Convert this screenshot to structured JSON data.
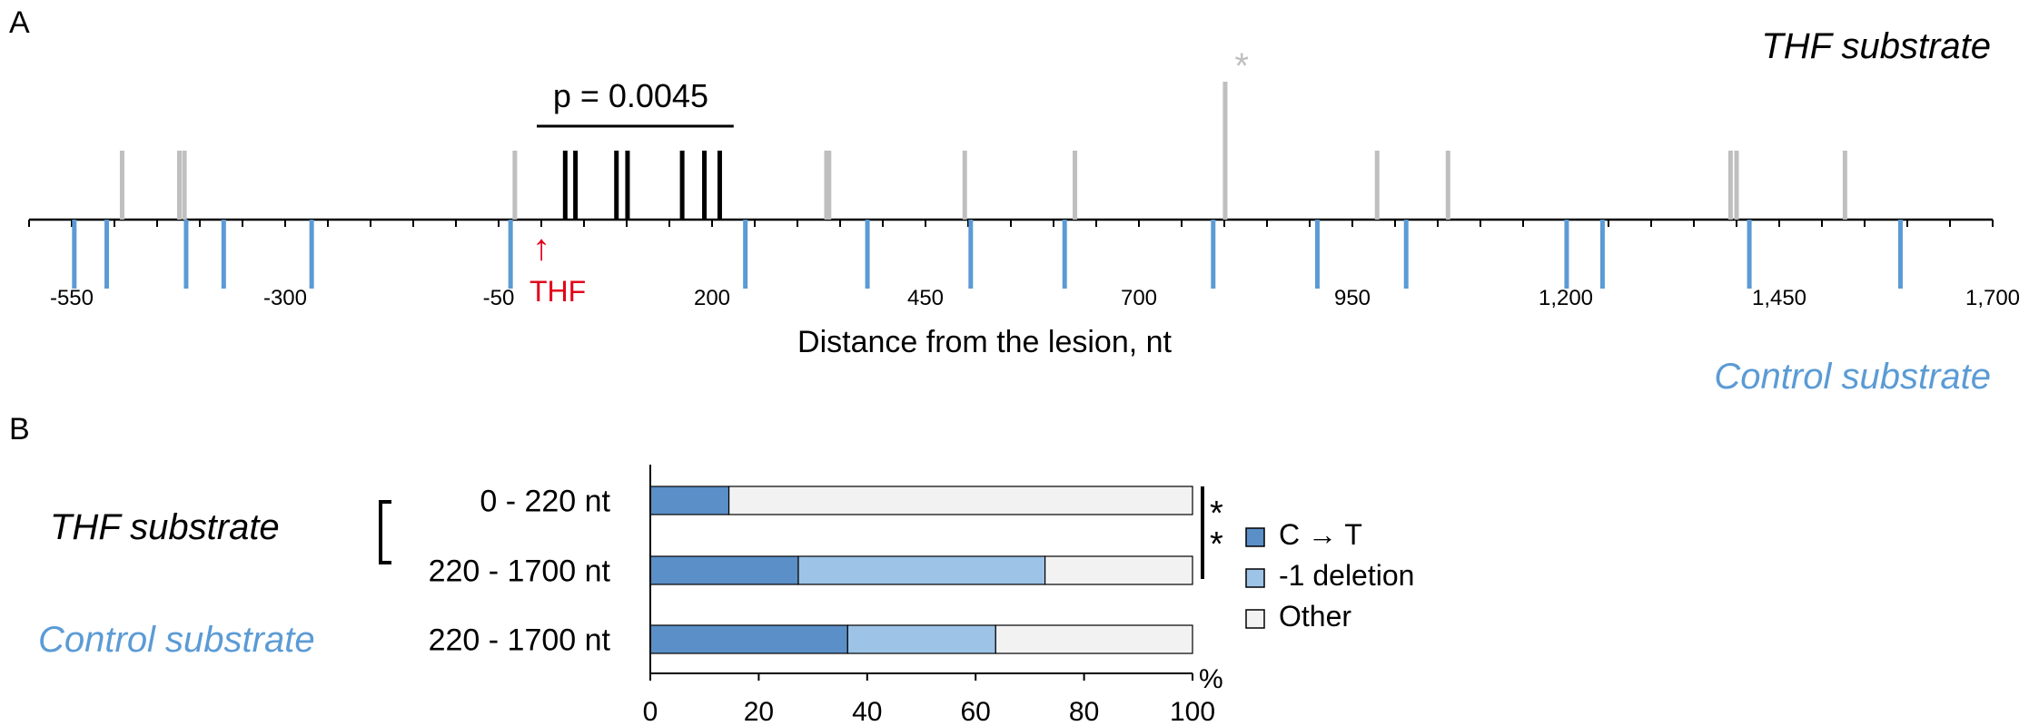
{
  "colors": {
    "thf_site": "#000000",
    "thf_site_other": "#bfbfbf",
    "control_site": "#5b9bd5",
    "lesion_marker": "#e2001a",
    "c_to_t": "#5b8fc7",
    "deletion": "#9dc3e6",
    "other": "#f2f2f2",
    "control_label": "#5b9bd5"
  },
  "chart_data": [
    {
      "type": "scatter",
      "panel_label": "A",
      "title": "THF substrate",
      "subtitle": "Control substrate",
      "xlabel": "Distance from the lesion, nt",
      "ylabel": "",
      "xlim": [
        -600,
        1700
      ],
      "x_ticks": [
        -550,
        -300,
        -50,
        200,
        450,
        700,
        950,
        1200,
        1450,
        1700
      ],
      "x_tick_labels": [
        "-550",
        "-300",
        "-50",
        "200",
        "450",
        "700",
        "950",
        "1,200",
        "1,450",
        "1,700"
      ],
      "minor_tick_step": 50,
      "lesion": {
        "label": "THF",
        "x": 0
      },
      "significance": {
        "label": "p = 0.0045",
        "from": 0,
        "to": 220
      },
      "star_label": "*",
      "star_x": 810,
      "series": [
        {
          "name": "THF substrate",
          "kind": "above",
          "points": [
            {
              "x": -491,
              "h": 1,
              "group": "gray"
            },
            {
              "x": -424,
              "h": 1,
              "group": "gray"
            },
            {
              "x": -418,
              "h": 1,
              "group": "gray"
            },
            {
              "x": -31,
              "h": 1,
              "group": "gray"
            },
            {
              "x": 28,
              "h": 1,
              "group": "black"
            },
            {
              "x": 40,
              "h": 1,
              "group": "black"
            },
            {
              "x": 88,
              "h": 1,
              "group": "black"
            },
            {
              "x": 101,
              "h": 1,
              "group": "black"
            },
            {
              "x": 165,
              "h": 1,
              "group": "black"
            },
            {
              "x": 191,
              "h": 1,
              "group": "black"
            },
            {
              "x": 209,
              "h": 1,
              "group": "black"
            },
            {
              "x": 334,
              "h": 1,
              "group": "gray"
            },
            {
              "x": 337,
              "h": 1,
              "group": "gray"
            },
            {
              "x": 496,
              "h": 1,
              "group": "gray"
            },
            {
              "x": 625,
              "h": 1,
              "group": "gray"
            },
            {
              "x": 801,
              "h": 2,
              "group": "gray"
            },
            {
              "x": 979,
              "h": 1,
              "group": "gray"
            },
            {
              "x": 1062,
              "h": 1,
              "group": "gray"
            },
            {
              "x": 1393,
              "h": 1,
              "group": "gray"
            },
            {
              "x": 1400,
              "h": 1,
              "group": "gray"
            },
            {
              "x": 1527,
              "h": 1,
              "group": "gray"
            }
          ]
        },
        {
          "name": "Control substrate",
          "kind": "below",
          "points": [
            {
              "x": -547
            },
            {
              "x": -509
            },
            {
              "x": -416
            },
            {
              "x": -372
            },
            {
              "x": -269
            },
            {
              "x": -36
            },
            {
              "x": 239
            },
            {
              "x": 382
            },
            {
              "x": 503
            },
            {
              "x": 613
            },
            {
              "x": 787
            },
            {
              "x": 909
            },
            {
              "x": 1013
            },
            {
              "x": 1201
            },
            {
              "x": 1243
            },
            {
              "x": 1415
            },
            {
              "x": 1592
            }
          ]
        }
      ]
    },
    {
      "type": "bar",
      "stacked": true,
      "orientation": "horizontal",
      "panel_label": "B",
      "xlim": [
        0,
        100
      ],
      "x_ticks": [
        0,
        20,
        40,
        60,
        80,
        100
      ],
      "x_unit": "%",
      "categories": [
        "0 - 220 nt",
        "220 - 1700 nt",
        "220 - 1700 nt"
      ],
      "groups": [
        {
          "label": "THF substrate",
          "rows": [
            0,
            1
          ]
        },
        {
          "label": "Control substrate",
          "rows": [
            2
          ]
        }
      ],
      "significance_label": "*\n*",
      "series": [
        {
          "name": "C → T",
          "values": [
            14.5,
            27.3,
            36.4
          ]
        },
        {
          "name": "-1 deletion",
          "values": [
            0,
            45.5,
            27.3
          ]
        },
        {
          "name": "Other",
          "values": [
            85.5,
            27.2,
            36.3
          ]
        }
      ],
      "legend_position": "right"
    }
  ]
}
